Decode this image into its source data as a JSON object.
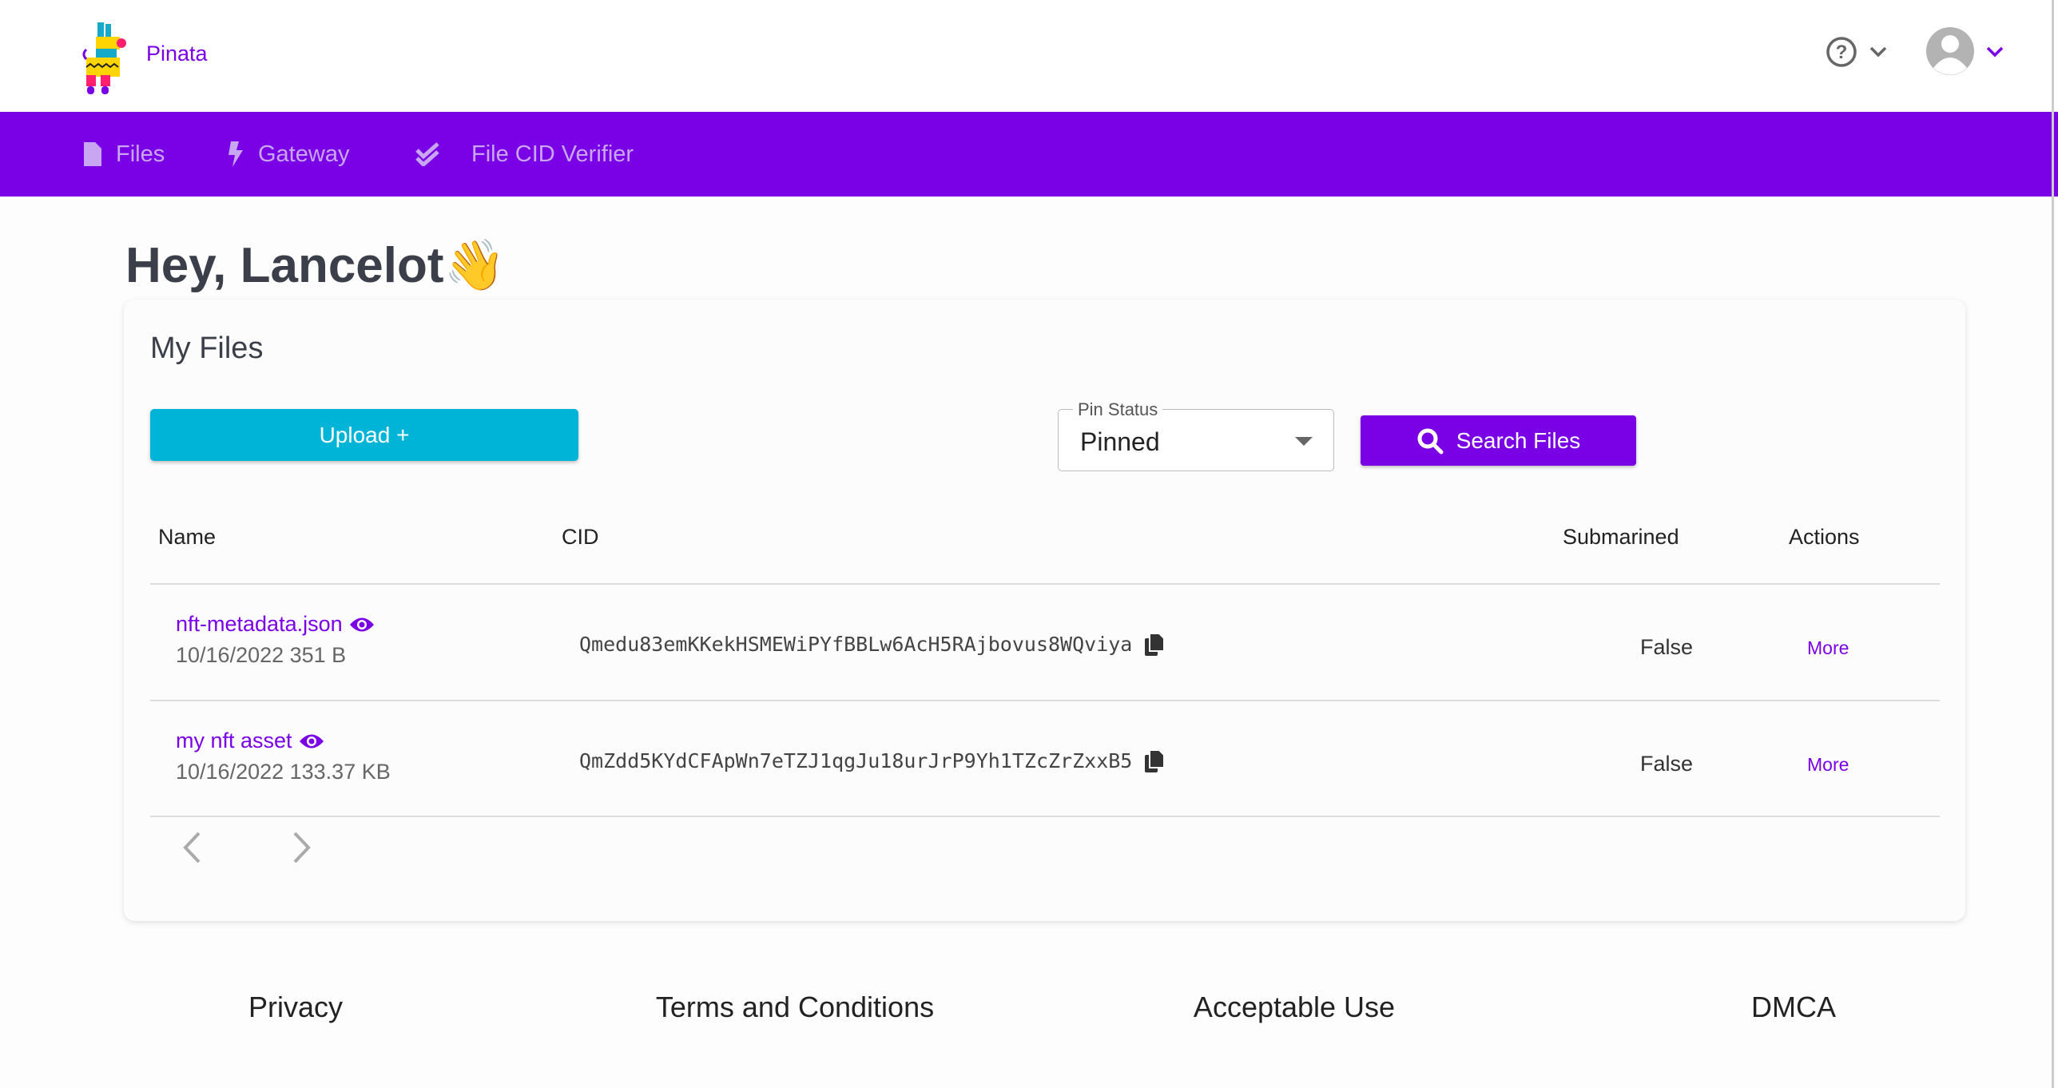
{
  "brand": {
    "name": "Pinata"
  },
  "nav": {
    "items": [
      {
        "label": "Files",
        "icon": "file-icon"
      },
      {
        "label": "Gateway",
        "icon": "bolt-icon"
      },
      {
        "label": "File CID Verifier",
        "icon": "double-check-icon"
      }
    ]
  },
  "header": {
    "help_icon": "question-circle-icon",
    "avatar_icon": "user-avatar-icon"
  },
  "greeting": "Hey, Lancelot👋",
  "files": {
    "title": "My Files",
    "upload_label": "Upload +",
    "pin_status": {
      "label": "Pin Status",
      "value": "Pinned"
    },
    "search_label": "Search Files",
    "columns": [
      "Name",
      "CID",
      "Submarined",
      "Actions"
    ],
    "rows": [
      {
        "name": "nft-metadata.json",
        "date": "10/16/2022",
        "size": "351 B",
        "meta": "10/16/2022 351 B",
        "cid": "Qmedu83emKKekHSMEWiPYfBBLw6AcH5RAjbovus8WQviya",
        "submarined": "False",
        "action": "More"
      },
      {
        "name": "my nft asset",
        "date": "10/16/2022",
        "size": "133.37 KB",
        "meta": "10/16/2022 133.37 KB",
        "cid": "QmZdd5KYdCFApWn7eTZJ1qgJu18urJrP9Yh1TZcZrZxxB5",
        "submarined": "False",
        "action": "More"
      }
    ]
  },
  "footer": {
    "links": [
      "Privacy",
      "Terms and Conditions",
      "Acceptable Use",
      "DMCA"
    ]
  },
  "colors": {
    "primary": "#7a00e6",
    "upload": "#00b4d8"
  }
}
